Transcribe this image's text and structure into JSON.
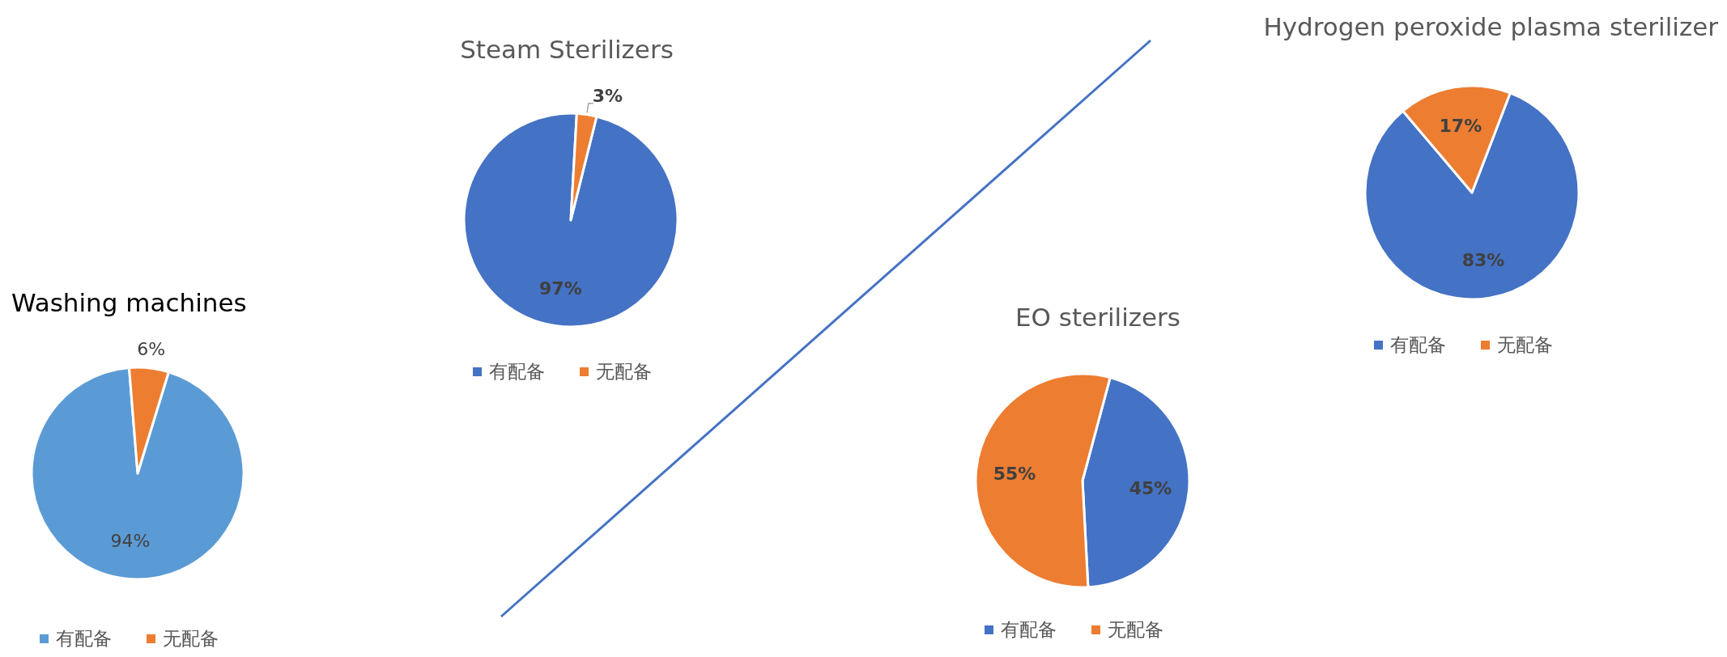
{
  "chart_data": [
    {
      "type": "pie",
      "title": "Washing machines",
      "categories": [
        "有配备",
        "无配备"
      ],
      "values": [
        94,
        6
      ],
      "value_labels": [
        "94%",
        "6%"
      ],
      "colors": [
        "#5b9bd5",
        "#ed7d31"
      ],
      "legend": "bottom"
    },
    {
      "type": "pie",
      "title": "Steam Sterilizers",
      "categories": [
        "有配备",
        "无配备"
      ],
      "values": [
        97,
        3
      ],
      "value_labels": [
        "97%",
        "3%"
      ],
      "colors": [
        "#4472c4",
        "#ed7d31"
      ],
      "legend": "bottom"
    },
    {
      "type": "pie",
      "title": "Hydrogen peroxide plasma sterilizer",
      "categories": [
        "有配备",
        "无配备"
      ],
      "values": [
        83,
        17
      ],
      "value_labels": [
        "83%",
        "17%"
      ],
      "colors": [
        "#4472c4",
        "#ed7d31"
      ],
      "legend": "bottom"
    },
    {
      "type": "pie",
      "title": "EO sterilizers",
      "categories": [
        "有配备",
        "无配备"
      ],
      "values": [
        45,
        55
      ],
      "value_labels": [
        "45%",
        "55%"
      ],
      "colors": [
        "#4472c4",
        "#ed7d31"
      ],
      "legend": "bottom"
    }
  ]
}
